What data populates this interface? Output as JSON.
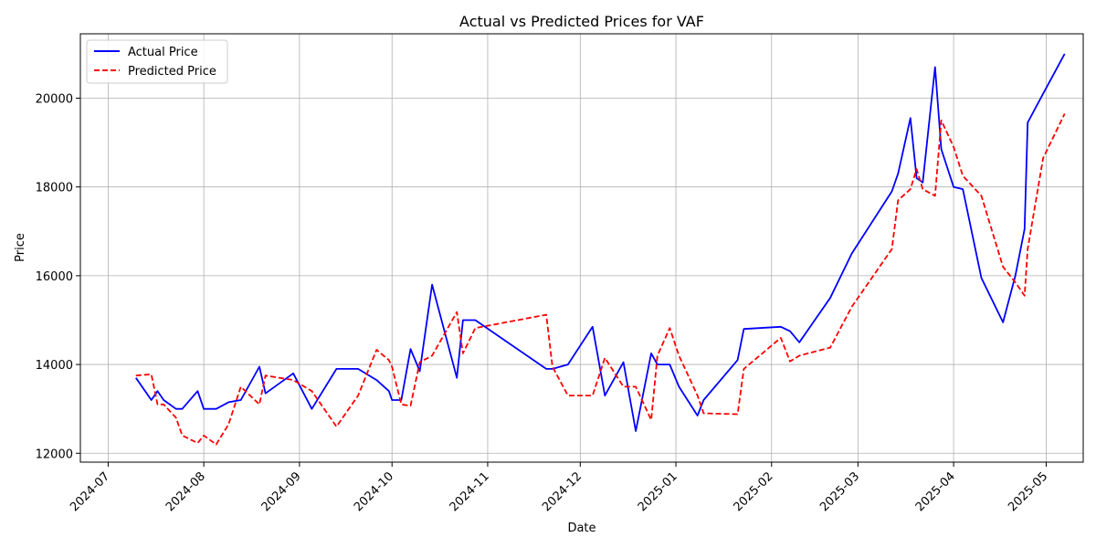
{
  "chart_data": {
    "type": "line",
    "title": "Actual vs Predicted Prices for VAF",
    "xlabel": "Date",
    "ylabel": "Price",
    "x_ticks": [
      "2024-07",
      "2024-08",
      "2024-09",
      "2024-10",
      "2024-11",
      "2024-12",
      "2025-01",
      "2025-02",
      "2025-03",
      "2025-04",
      "2025-05"
    ],
    "y_ticks": [
      12000,
      14000,
      16000,
      18000,
      20000
    ],
    "xlim": [
      "2024-06-22",
      "2025-05-13"
    ],
    "ylim": [
      11800,
      21450
    ],
    "grid": true,
    "legend_position": "upper-left",
    "series": [
      {
        "name": "Actual Price",
        "color": "#0000ff",
        "style": "solid",
        "points": [
          [
            "2024-07-10",
            13700
          ],
          [
            "2024-07-15",
            13200
          ],
          [
            "2024-07-17",
            13400
          ],
          [
            "2024-07-19",
            13200
          ],
          [
            "2024-07-23",
            13000
          ],
          [
            "2024-07-25",
            13000
          ],
          [
            "2024-07-30",
            13400
          ],
          [
            "2024-08-01",
            13000
          ],
          [
            "2024-08-05",
            13000
          ],
          [
            "2024-08-09",
            13150
          ],
          [
            "2024-08-13",
            13200
          ],
          [
            "2024-08-19",
            13950
          ],
          [
            "2024-08-21",
            13350
          ],
          [
            "2024-08-30",
            13800
          ],
          [
            "2024-09-05",
            13000
          ],
          [
            "2024-09-13",
            13900
          ],
          [
            "2024-09-20",
            13900
          ],
          [
            "2024-09-26",
            13650
          ],
          [
            "2024-09-30",
            13400
          ],
          [
            "2024-10-01",
            13200
          ],
          [
            "2024-10-04",
            13200
          ],
          [
            "2024-10-07",
            14350
          ],
          [
            "2024-10-10",
            13850
          ],
          [
            "2024-10-14",
            15800
          ],
          [
            "2024-10-22",
            13700
          ],
          [
            "2024-10-24",
            15000
          ],
          [
            "2024-10-28",
            15000
          ],
          [
            "2024-11-20",
            13900
          ],
          [
            "2024-11-22",
            13900
          ],
          [
            "2024-11-27",
            14000
          ],
          [
            "2024-12-05",
            14850
          ],
          [
            "2024-12-09",
            13300
          ],
          [
            "2024-12-15",
            14050
          ],
          [
            "2024-12-19",
            12500
          ],
          [
            "2024-12-24",
            14250
          ],
          [
            "2024-12-26",
            14000
          ],
          [
            "2024-12-30",
            14000
          ],
          [
            "2025-01-02",
            13500
          ],
          [
            "2025-01-08",
            12850
          ],
          [
            "2025-01-10",
            13200
          ],
          [
            "2025-01-21",
            14100
          ],
          [
            "2025-01-23",
            14800
          ],
          [
            "2025-02-04",
            14850
          ],
          [
            "2025-02-07",
            14750
          ],
          [
            "2025-02-10",
            14500
          ],
          [
            "2025-02-20",
            15500
          ],
          [
            "2025-02-27",
            16500
          ],
          [
            "2025-03-12",
            17900
          ],
          [
            "2025-03-14",
            18300
          ],
          [
            "2025-03-18",
            19550
          ],
          [
            "2025-03-20",
            18200
          ],
          [
            "2025-03-22",
            18100
          ],
          [
            "2025-03-26",
            20700
          ],
          [
            "2025-03-28",
            18850
          ],
          [
            "2025-04-01",
            18000
          ],
          [
            "2025-04-04",
            17950
          ],
          [
            "2025-04-10",
            15950
          ],
          [
            "2025-04-17",
            14950
          ],
          [
            "2025-04-21",
            16000
          ],
          [
            "2025-04-24",
            17050
          ],
          [
            "2025-04-25",
            19450
          ],
          [
            "2025-04-30",
            20100
          ],
          [
            "2025-05-07",
            21000
          ]
        ]
      },
      {
        "name": "Predicted Price",
        "color": "#ff0000",
        "style": "dashed",
        "points": [
          [
            "2024-07-10",
            13750
          ],
          [
            "2024-07-15",
            13780
          ],
          [
            "2024-07-17",
            13100
          ],
          [
            "2024-07-19",
            13100
          ],
          [
            "2024-07-23",
            12800
          ],
          [
            "2024-07-25",
            12400
          ],
          [
            "2024-07-30",
            12230
          ],
          [
            "2024-08-01",
            12400
          ],
          [
            "2024-08-05",
            12200
          ],
          [
            "2024-08-09",
            12650
          ],
          [
            "2024-08-13",
            13500
          ],
          [
            "2024-08-19",
            13100
          ],
          [
            "2024-08-21",
            13750
          ],
          [
            "2024-08-30",
            13650
          ],
          [
            "2024-09-05",
            13400
          ],
          [
            "2024-09-13",
            12600
          ],
          [
            "2024-09-20",
            13300
          ],
          [
            "2024-09-26",
            14330
          ],
          [
            "2024-09-30",
            14100
          ],
          [
            "2024-10-01",
            13950
          ],
          [
            "2024-10-04",
            13100
          ],
          [
            "2024-10-07",
            13070
          ],
          [
            "2024-10-10",
            14050
          ],
          [
            "2024-10-14",
            14200
          ],
          [
            "2024-10-22",
            15180
          ],
          [
            "2024-10-24",
            14250
          ],
          [
            "2024-10-28",
            14820
          ],
          [
            "2024-11-20",
            15120
          ],
          [
            "2024-11-22",
            13950
          ],
          [
            "2024-11-27",
            13300
          ],
          [
            "2024-12-05",
            13300
          ],
          [
            "2024-12-09",
            14150
          ],
          [
            "2024-12-15",
            13500
          ],
          [
            "2024-12-19",
            13500
          ],
          [
            "2024-12-24",
            12750
          ],
          [
            "2024-12-26",
            14200
          ],
          [
            "2024-12-30",
            14820
          ],
          [
            "2025-01-02",
            14200
          ],
          [
            "2025-01-08",
            13300
          ],
          [
            "2025-01-10",
            12900
          ],
          [
            "2025-01-21",
            12880
          ],
          [
            "2025-01-23",
            13900
          ],
          [
            "2025-02-04",
            14600
          ],
          [
            "2025-02-07",
            14070
          ],
          [
            "2025-02-10",
            14200
          ],
          [
            "2025-02-20",
            14380
          ],
          [
            "2025-02-27",
            15300
          ],
          [
            "2025-03-12",
            16600
          ],
          [
            "2025-03-14",
            17700
          ],
          [
            "2025-03-18",
            17950
          ],
          [
            "2025-03-20",
            18400
          ],
          [
            "2025-03-22",
            17950
          ],
          [
            "2025-03-26",
            17800
          ],
          [
            "2025-03-28",
            19500
          ],
          [
            "2025-04-01",
            18900
          ],
          [
            "2025-04-04",
            18250
          ],
          [
            "2025-04-10",
            17800
          ],
          [
            "2025-04-17",
            16200
          ],
          [
            "2025-04-21",
            15850
          ],
          [
            "2025-04-24",
            15550
          ],
          [
            "2025-04-25",
            16600
          ],
          [
            "2025-04-30",
            18650
          ],
          [
            "2025-05-07",
            19650
          ]
        ]
      }
    ]
  }
}
